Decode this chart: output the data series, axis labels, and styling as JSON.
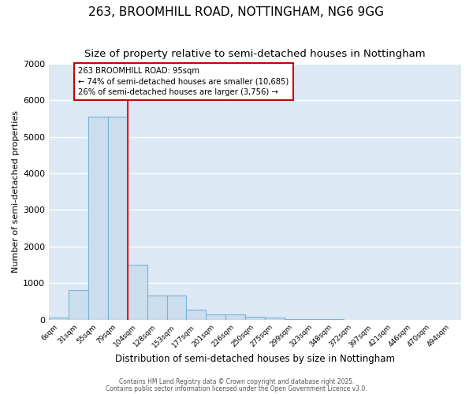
{
  "title1": "263, BROOMHILL ROAD, NOTTINGHAM, NG6 9GG",
  "title2": "Size of property relative to semi-detached houses in Nottingham",
  "xlabel": "Distribution of semi-detached houses by size in Nottingham",
  "ylabel": "Number of semi-detached properties",
  "categories": [
    "6sqm",
    "31sqm",
    "55sqm",
    "79sqm",
    "104sqm",
    "128sqm",
    "153sqm",
    "177sqm",
    "201sqm",
    "226sqm",
    "250sqm",
    "275sqm",
    "299sqm",
    "323sqm",
    "348sqm",
    "372sqm",
    "397sqm",
    "421sqm",
    "446sqm",
    "470sqm",
    "494sqm"
  ],
  "values": [
    50,
    800,
    5550,
    5550,
    1500,
    650,
    650,
    270,
    150,
    150,
    80,
    50,
    10,
    5,
    3,
    2,
    1,
    1,
    0,
    0,
    0
  ],
  "bar_color": "#ccdded",
  "bar_edge_color": "#7ab4d4",
  "bar_width": 1.0,
  "red_line_index": 4,
  "red_line_label": "263 BROOMHILL ROAD: 95sqm",
  "annotation_smaller": "← 74% of semi-detached houses are smaller (10,685)",
  "annotation_larger": "26% of semi-detached houses are larger (3,756) →",
  "annotation_box_color": "#ffffff",
  "annotation_box_edge": "#cc0000",
  "ylim": [
    0,
    7000
  ],
  "yticks": [
    0,
    1000,
    2000,
    3000,
    4000,
    5000,
    6000,
    7000
  ],
  "plot_bg_color": "#dce9f5",
  "fig_bg_color": "#ffffff",
  "grid_color": "#ffffff",
  "title_fontsize": 11,
  "subtitle_fontsize": 9.5,
  "footer_text1": "Contains HM Land Registry data © Crown copyright and database right 2025.",
  "footer_text2": "Contains public sector information licensed under the Open Government Licence v3.0."
}
